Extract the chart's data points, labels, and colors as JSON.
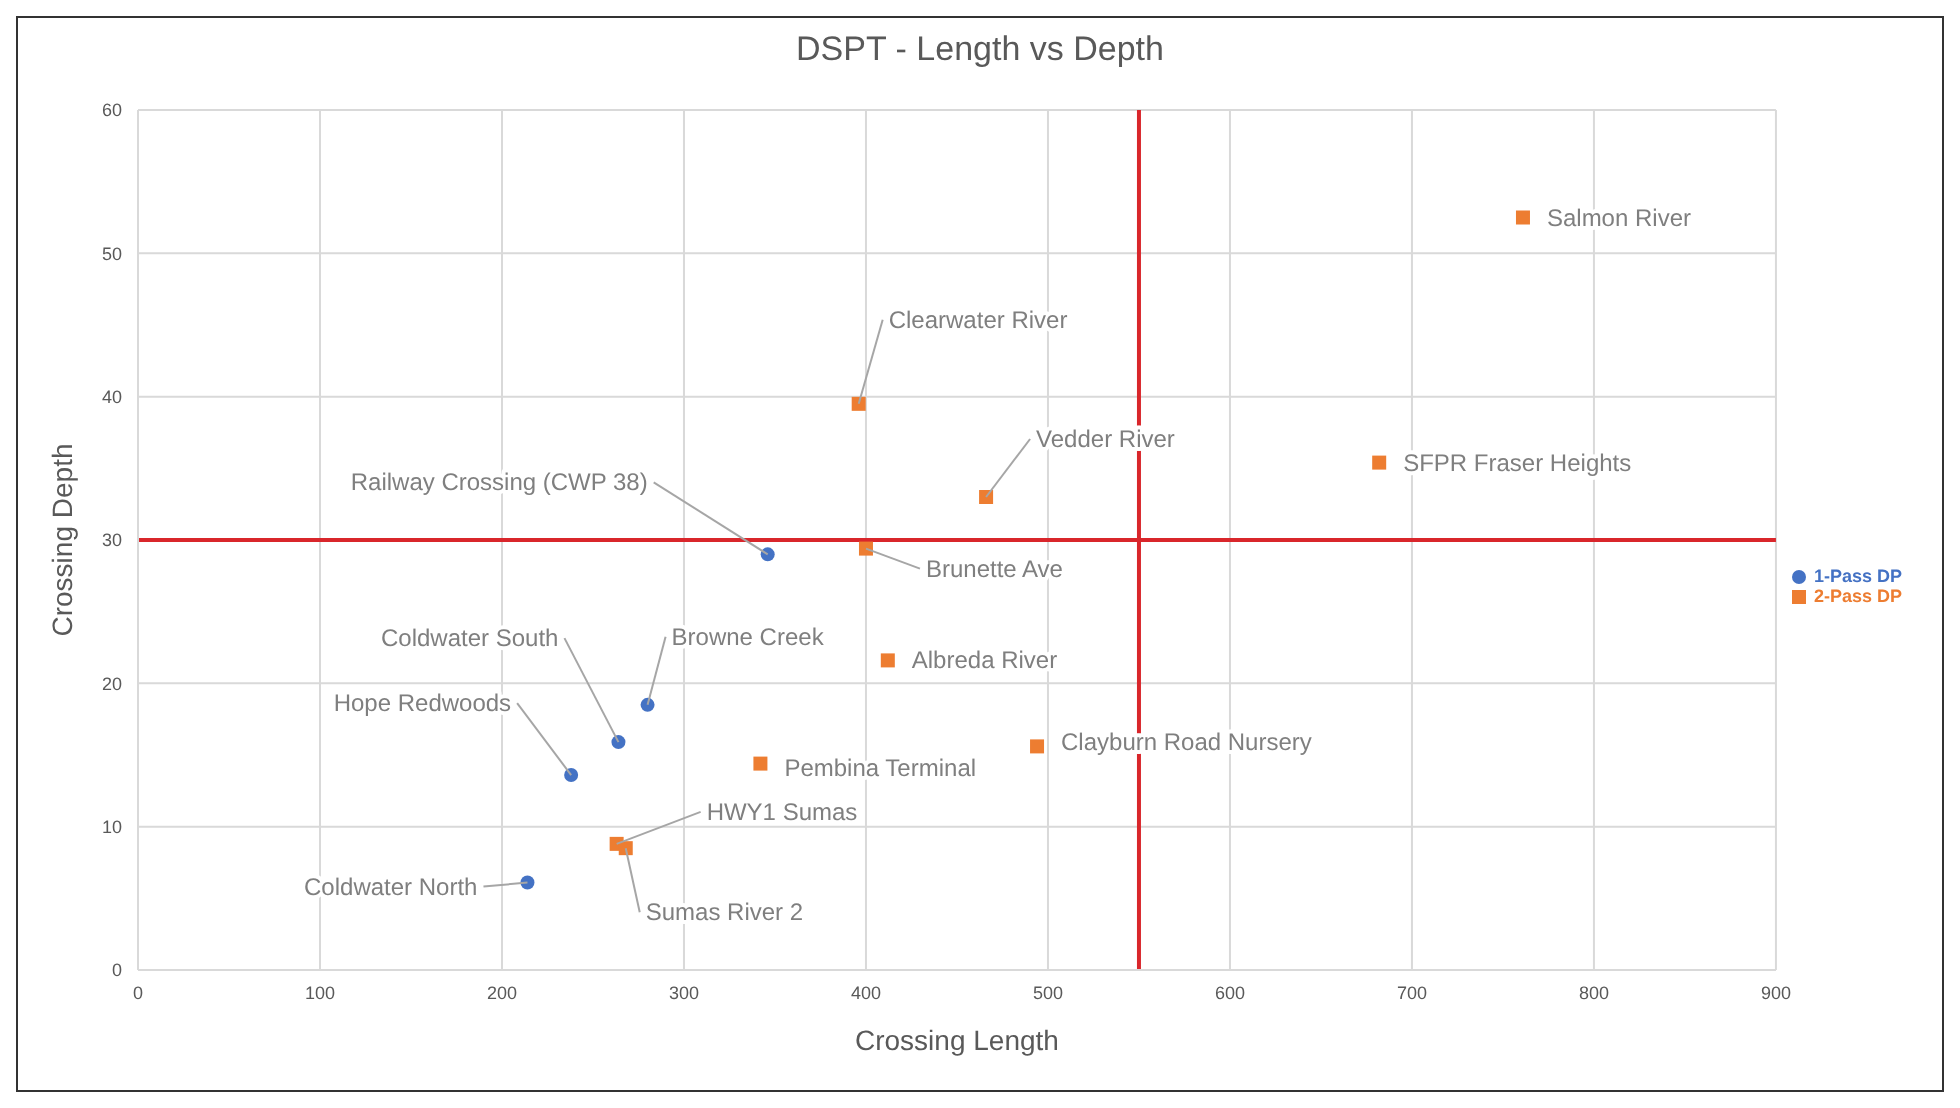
{
  "chart_data": {
    "type": "scatter",
    "title": "DSPT - Length vs Depth",
    "xlabel": "Crossing Length",
    "ylabel": "Crossing Depth",
    "series": [
      {
        "name": "1-Pass DP",
        "color": "#4472c4",
        "marker": "circle",
        "x": [
          346,
          280,
          264,
          238,
          214
        ],
        "values": [
          29.0,
          18.5,
          15.9,
          13.6,
          6.1
        ]
      },
      {
        "name": "2-Pass DP",
        "color": "#ed7d31",
        "marker": "square",
        "x": [
          761,
          396,
          466,
          682,
          400,
          412,
          494,
          342,
          263,
          268
        ],
        "values": [
          52.5,
          39.5,
          33.0,
          35.4,
          29.4,
          21.6,
          15.6,
          14.4,
          8.8,
          8.5
        ]
      }
    ],
    "xlim": [
      0,
      900
    ],
    "xticks": [
      0,
      100,
      200,
      300,
      400,
      500,
      600,
      700,
      800,
      900
    ],
    "ylim": [
      0,
      60
    ],
    "yticks": [
      0,
      10,
      20,
      30,
      40,
      50,
      60
    ],
    "grid": true,
    "legend": "right",
    "ref_lines": [
      {
        "axis": "y",
        "value": 30,
        "color": "#d9262b"
      },
      {
        "axis": "x",
        "value": 550,
        "color": "#d9262b"
      }
    ],
    "annotations": [
      {
        "text": "Salmon River",
        "x": 761,
        "y": 52.5
      },
      {
        "text": "Clearwater River",
        "x": 396,
        "y": 39.5
      },
      {
        "text": "Vedder River",
        "x": 466,
        "y": 33.0
      },
      {
        "text": "SFPR Fraser Heights",
        "x": 682,
        "y": 35.4
      },
      {
        "text": "Brunette Ave",
        "x": 400,
        "y": 29.4
      },
      {
        "text": "Albreda River",
        "x": 412,
        "y": 21.6
      },
      {
        "text": "Clayburn Road Nursery",
        "x": 494,
        "y": 15.6
      },
      {
        "text": "Pembina Terminal",
        "x": 342,
        "y": 14.4
      },
      {
        "text": "HWY1 Sumas",
        "x": 263,
        "y": 8.8
      },
      {
        "text": "Sumas River 2",
        "x": 268,
        "y": 8.5
      },
      {
        "text": "Railway Crossing (CWP 38)",
        "x": 346,
        "y": 29.0
      },
      {
        "text": "Browne Creek",
        "x": 280,
        "y": 18.5
      },
      {
        "text": "Coldwater South",
        "x": 264,
        "y": 15.9
      },
      {
        "text": "Hope Redwoods",
        "x": 238,
        "y": 13.6
      },
      {
        "text": "Coldwater North",
        "x": 214,
        "y": 6.1
      }
    ]
  }
}
